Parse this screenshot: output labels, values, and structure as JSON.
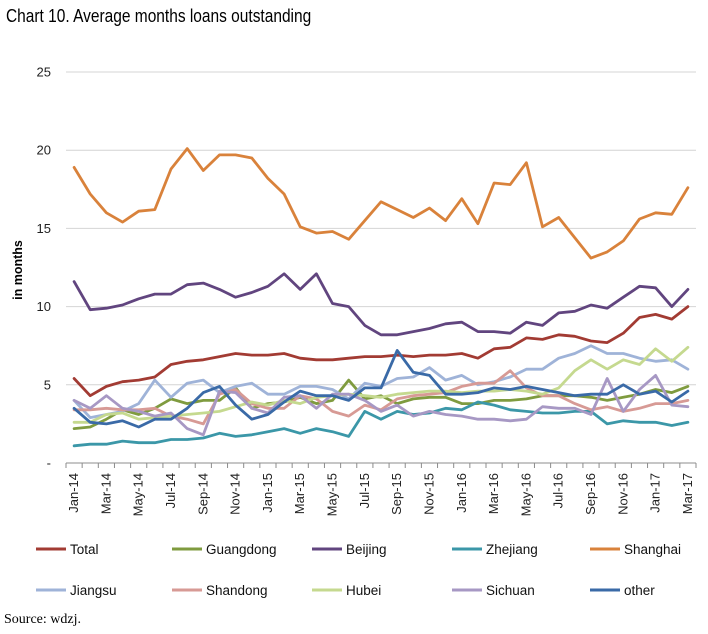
{
  "title": "Chart 10. Average months loans outstanding",
  "source": "Source: wdzj.",
  "chart_data": {
    "type": "line",
    "ylabel": "in months",
    "ylim": [
      0,
      25
    ],
    "yticks": [
      0,
      5,
      10,
      15,
      20,
      25
    ],
    "ytick_labels": [
      "-",
      "5",
      "10",
      "15",
      "20",
      "25"
    ],
    "grid": "horizontal",
    "legend_position": "bottom",
    "x": [
      "Jan-14",
      "Feb-14",
      "Mar-14",
      "Apr-14",
      "May-14",
      "Jun-14",
      "Jul-14",
      "Aug-14",
      "Sep-14",
      "Oct-14",
      "Nov-14",
      "Dec-14",
      "Jan-15",
      "Feb-15",
      "Mar-15",
      "Apr-15",
      "May-15",
      "Jun-15",
      "Jul-15",
      "Aug-15",
      "Sep-15",
      "Oct-15",
      "Nov-15",
      "Dec-15",
      "Jan-16",
      "Feb-16",
      "Mar-16",
      "Apr-16",
      "May-16",
      "Jun-16",
      "Jul-16",
      "Aug-16",
      "Sep-16",
      "Oct-16",
      "Nov-16",
      "Dec-16",
      "Jan-17",
      "Feb-17",
      "Mar-17"
    ],
    "xtick_labels": [
      "Jan-14",
      "Mar-14",
      "May-14",
      "Jul-14",
      "Sep-14",
      "Nov-14",
      "Jan-15",
      "Mar-15",
      "May-15",
      "Jul-15",
      "Sep-15",
      "Nov-15",
      "Jan-16",
      "Mar-16",
      "May-16",
      "Jul-16",
      "Sep-16",
      "Nov-16",
      "Jan-17",
      "Mar-17"
    ],
    "series": [
      {
        "name": "Total",
        "color": "#a23b33",
        "width": 2.8,
        "values": [
          5.4,
          4.3,
          4.9,
          5.2,
          5.3,
          5.5,
          6.3,
          6.5,
          6.6,
          6.8,
          7.0,
          6.9,
          6.9,
          7.0,
          6.7,
          6.6,
          6.6,
          6.7,
          6.8,
          6.8,
          6.9,
          6.8,
          6.9,
          6.9,
          7.0,
          6.7,
          7.3,
          7.4,
          8.0,
          7.9,
          8.2,
          8.1,
          7.8,
          7.7,
          8.3,
          9.3,
          9.5,
          9.2,
          10.0
        ]
      },
      {
        "name": "Guangdong",
        "color": "#7f9b3f",
        "width": 2.8,
        "values": [
          2.2,
          2.3,
          2.8,
          3.4,
          3.1,
          3.5,
          4.1,
          3.8,
          4.0,
          4.0,
          4.8,
          3.5,
          3.8,
          3.9,
          4.2,
          3.8,
          4.0,
          5.3,
          4.1,
          4.3,
          3.8,
          4.1,
          4.2,
          4.2,
          3.8,
          3.8,
          4.0,
          4.0,
          4.1,
          4.3,
          4.3,
          4.3,
          4.2,
          4.0,
          4.2,
          4.4,
          4.7,
          4.5,
          4.9
        ]
      },
      {
        "name": "Beijing",
        "color": "#61457f",
        "width": 2.8,
        "values": [
          11.6,
          9.8,
          9.9,
          10.1,
          10.5,
          10.8,
          10.8,
          11.4,
          11.5,
          11.1,
          10.6,
          10.9,
          11.3,
          12.1,
          11.1,
          12.1,
          10.2,
          10.0,
          8.8,
          8.2,
          8.2,
          8.4,
          8.6,
          8.9,
          9.0,
          8.4,
          8.4,
          8.3,
          9.0,
          8.8,
          9.6,
          9.7,
          10.1,
          9.9,
          10.6,
          11.3,
          11.2,
          10.0,
          11.1
        ]
      },
      {
        "name": "Zhejiang",
        "color": "#3b97a8",
        "width": 2.8,
        "values": [
          1.1,
          1.2,
          1.2,
          1.4,
          1.3,
          1.3,
          1.5,
          1.5,
          1.6,
          1.9,
          1.7,
          1.8,
          2.0,
          2.2,
          1.9,
          2.2,
          2.0,
          1.7,
          3.3,
          2.8,
          3.3,
          3.1,
          3.2,
          3.5,
          3.4,
          3.9,
          3.7,
          3.4,
          3.3,
          3.2,
          3.2,
          3.3,
          3.3,
          2.5,
          2.7,
          2.6,
          2.6,
          2.4,
          2.6
        ]
      },
      {
        "name": "Shanghai",
        "color": "#d9823b",
        "width": 2.8,
        "values": [
          18.9,
          17.2,
          16.0,
          15.4,
          16.1,
          16.2,
          18.8,
          20.1,
          18.7,
          19.7,
          19.7,
          19.5,
          18.2,
          17.2,
          15.1,
          14.7,
          14.8,
          14.3,
          15.5,
          16.7,
          16.2,
          15.7,
          16.3,
          15.5,
          16.9,
          15.3,
          17.9,
          17.8,
          19.2,
          15.1,
          15.7,
          14.4,
          13.1,
          13.5,
          14.2,
          15.6,
          16.0,
          15.9,
          17.6
        ]
      },
      {
        "name": "Jiangsu",
        "color": "#9fb3d8",
        "width": 2.8,
        "values": [
          4.0,
          2.9,
          3.1,
          3.3,
          3.8,
          5.3,
          4.2,
          5.1,
          5.3,
          4.5,
          4.9,
          5.1,
          4.4,
          4.4,
          4.9,
          4.9,
          4.7,
          4.1,
          5.1,
          4.9,
          5.4,
          5.5,
          6.1,
          5.3,
          5.6,
          5.0,
          5.2,
          5.5,
          6.0,
          6.0,
          6.7,
          7.0,
          7.5,
          7.0,
          7.0,
          6.7,
          6.5,
          6.6,
          6.0
        ]
      },
      {
        "name": "Shandong",
        "color": "#d79a95",
        "width": 2.8,
        "values": [
          3.4,
          3.4,
          3.5,
          3.4,
          3.4,
          3.5,
          3.0,
          2.8,
          2.5,
          4.4,
          4.7,
          3.8,
          3.5,
          3.5,
          4.3,
          4.1,
          3.3,
          3.0,
          3.7,
          3.4,
          4.1,
          4.3,
          4.4,
          4.5,
          4.9,
          5.1,
          5.1,
          5.9,
          4.8,
          4.3,
          4.3,
          3.8,
          3.4,
          3.6,
          3.3,
          3.5,
          3.8,
          3.8,
          4.0
        ]
      },
      {
        "name": "Hubei",
        "color": "#c5d98f",
        "width": 2.8,
        "values": [
          2.6,
          2.6,
          3.1,
          3.2,
          2.8,
          2.9,
          3.0,
          3.1,
          3.2,
          3.3,
          3.6,
          3.9,
          3.7,
          4.0,
          3.8,
          4.2,
          4.3,
          4.4,
          4.3,
          4.2,
          4.4,
          4.5,
          4.6,
          4.6,
          4.5,
          4.6,
          4.6,
          4.7,
          4.6,
          4.4,
          4.8,
          5.9,
          6.6,
          6.0,
          6.6,
          6.3,
          7.3,
          6.5,
          7.4
        ]
      },
      {
        "name": "Sichuan",
        "color": "#a798c4",
        "width": 2.8,
        "values": [
          4.0,
          3.5,
          4.3,
          3.5,
          3.3,
          3.0,
          3.2,
          2.2,
          1.8,
          4.6,
          4.5,
          3.5,
          3.2,
          4.2,
          4.3,
          3.5,
          4.4,
          4.4,
          4.0,
          3.3,
          3.7,
          3.0,
          3.3,
          3.1,
          3.0,
          2.8,
          2.8,
          2.7,
          2.8,
          3.6,
          3.5,
          3.5,
          3.1,
          5.4,
          3.3,
          4.7,
          5.6,
          3.7,
          3.6
        ]
      },
      {
        "name": "other",
        "color": "#3a6aa7",
        "width": 2.8,
        "values": [
          3.5,
          2.6,
          2.5,
          2.7,
          2.3,
          2.8,
          2.8,
          3.5,
          4.5,
          4.9,
          3.7,
          2.8,
          3.1,
          3.9,
          4.6,
          4.3,
          4.3,
          4.0,
          4.8,
          4.8,
          7.2,
          5.8,
          5.6,
          4.4,
          4.4,
          4.5,
          4.8,
          4.7,
          4.9,
          4.7,
          4.5,
          4.3,
          4.4,
          4.4,
          5.0,
          4.4,
          4.6,
          3.9,
          4.6
        ]
      }
    ]
  }
}
